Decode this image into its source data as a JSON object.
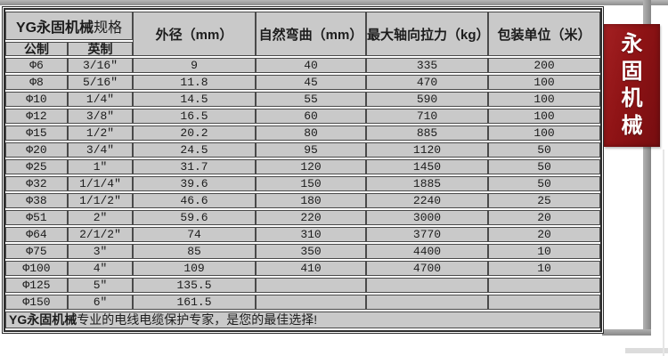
{
  "window": {
    "background": "#ffffff",
    "frame_color": "#a0a0a0"
  },
  "banner": {
    "chars": [
      "永",
      "固",
      "机",
      "械"
    ],
    "bg_color": "#8e1315",
    "text_color": "#ffffff"
  },
  "table": {
    "cell_bg": "#c9c9c9",
    "border_color": "#4a4a4a",
    "title_bold": "YG永固机械",
    "title_rest": "规格",
    "sub_headers": [
      "公制",
      "英制"
    ],
    "col_headers": [
      "外径（mm）",
      "自然弯曲（mm）",
      "最大轴向拉力（kg）",
      "包装单位（米）"
    ],
    "rows": [
      {
        "metric": "Φ6",
        "imperial": "3/16″",
        "od": "9",
        "bend": "40",
        "tension": "335",
        "pack": "200"
      },
      {
        "metric": "Φ8",
        "imperial": "5/16″",
        "od": "11.8",
        "bend": "45",
        "tension": "470",
        "pack": "100"
      },
      {
        "metric": "Φ10",
        "imperial": "1/4″",
        "od": "14.5",
        "bend": "55",
        "tension": "590",
        "pack": "100"
      },
      {
        "metric": "Φ12",
        "imperial": "3/8″",
        "od": "16.5",
        "bend": "60",
        "tension": "710",
        "pack": "100"
      },
      {
        "metric": "Φ15",
        "imperial": "1/2″",
        "od": "20.2",
        "bend": "80",
        "tension": "885",
        "pack": "100"
      },
      {
        "metric": "Φ20",
        "imperial": "3/4″",
        "od": "24.5",
        "bend": "95",
        "tension": "1120",
        "pack": "50"
      },
      {
        "metric": "Φ25",
        "imperial": "1″",
        "od": "31.7",
        "bend": "120",
        "tension": "1450",
        "pack": "50"
      },
      {
        "metric": "Φ32",
        "imperial": "1/1/4″",
        "od": "39.6",
        "bend": "150",
        "tension": "1885",
        "pack": "50"
      },
      {
        "metric": "Φ38",
        "imperial": "1/1/2″",
        "od": "46.6",
        "bend": "180",
        "tension": "2240",
        "pack": "25"
      },
      {
        "metric": "Φ51",
        "imperial": "2″",
        "od": "59.6",
        "bend": "220",
        "tension": "3000",
        "pack": "20"
      },
      {
        "metric": "Φ64",
        "imperial": "2/1/2″",
        "od": "74",
        "bend": "310",
        "tension": "3770",
        "pack": "20"
      },
      {
        "metric": "Φ75",
        "imperial": "3″",
        "od": "85",
        "bend": "350",
        "tension": "4400",
        "pack": "10"
      },
      {
        "metric": "Φ100",
        "imperial": "4″",
        "od": "109",
        "bend": "410",
        "tension": "4700",
        "pack": "10"
      },
      {
        "metric": "Φ125",
        "imperial": "5″",
        "od": "135.5",
        "bend": "",
        "tension": "",
        "pack": ""
      },
      {
        "metric": "Φ150",
        "imperial": "6″",
        "od": "161.5",
        "bend": "",
        "tension": "",
        "pack": ""
      }
    ],
    "footer_bold": "YG永固机械",
    "footer_rest": "专业的电线电缆保护专家，是您的最佳选择!"
  }
}
